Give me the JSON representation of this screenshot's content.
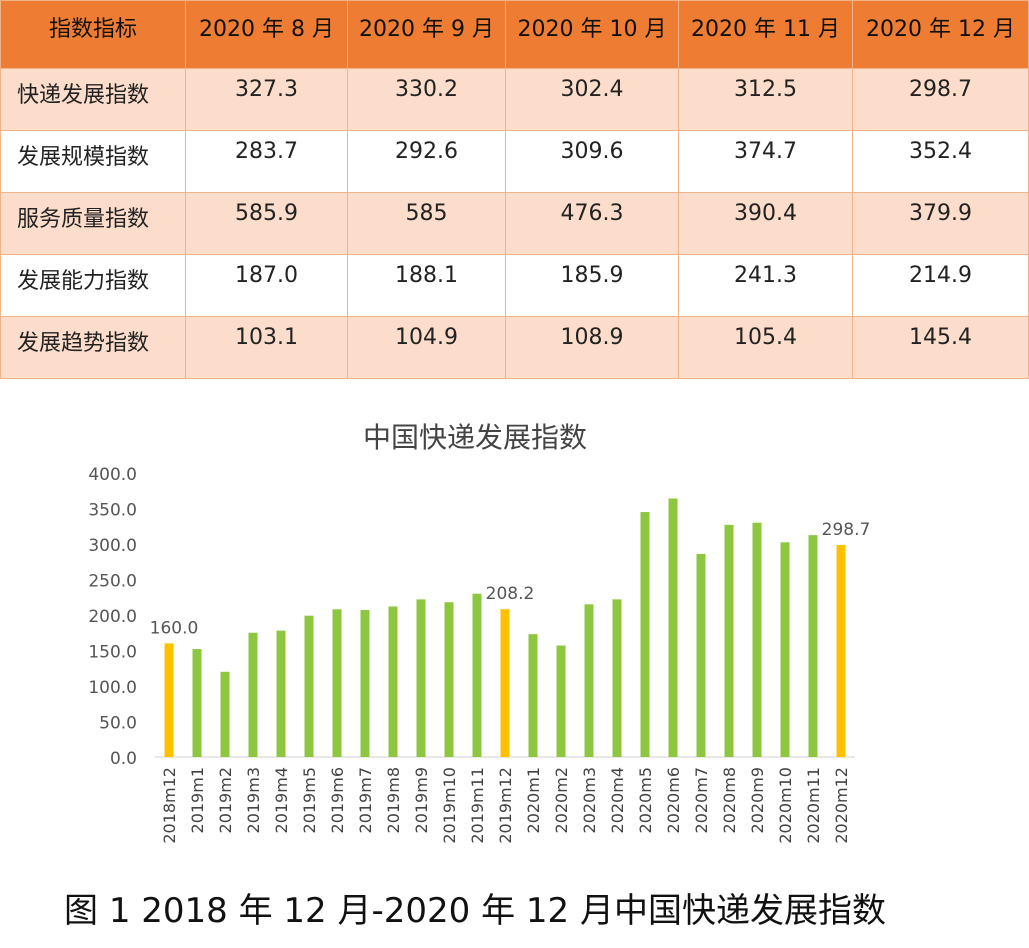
{
  "table": {
    "header": [
      "指数指标",
      "2020 年 8 月",
      "2020 年 9 月",
      "2020 年 10 月",
      "2020 年 11 月",
      "2020 年 12 月"
    ],
    "rows": [
      {
        "name": "快递发展指数",
        "values": [
          "327.3",
          "330.2",
          "302.4",
          "312.5",
          "298.7"
        ]
      },
      {
        "name": "发展规模指数",
        "values": [
          "283.7",
          "292.6",
          "309.6",
          "374.7",
          "352.4"
        ]
      },
      {
        "name": "服务质量指数",
        "values": [
          "585.9",
          "585",
          "476.3",
          "390.4",
          "379.9"
        ]
      },
      {
        "name": "发展能力指数",
        "values": [
          "187.0",
          "188.1",
          "185.9",
          "241.3",
          "214.9"
        ]
      },
      {
        "name": "发展趋势指数",
        "values": [
          "103.1",
          "104.9",
          "108.9",
          "105.4",
          "145.4"
        ]
      }
    ]
  },
  "chart_data": {
    "type": "bar",
    "title": "中国快递发展指数",
    "categories": [
      "2018m12",
      "2019m1",
      "2019m2",
      "2019m3",
      "2019m4",
      "2019m5",
      "2019m6",
      "2019m7",
      "2019m8",
      "2019m9",
      "2019m10",
      "2019m11",
      "2019m12",
      "2020m1",
      "2020m2",
      "2020m3",
      "2020m4",
      "2020m5",
      "2020m6",
      "2020m7",
      "2020m8",
      "2020m9",
      "2020m10",
      "2020m11",
      "2020m12"
    ],
    "values": [
      160.0,
      152,
      120,
      175,
      178,
      199,
      208,
      207,
      212,
      222,
      218,
      230,
      208.2,
      173,
      157,
      215,
      222,
      345,
      364,
      286,
      327,
      330,
      302.4,
      312.5,
      298.7
    ],
    "highlight_indices": [
      0,
      12,
      24
    ],
    "data_labels": {
      "0": "160.0",
      "12": "208.2",
      "24": "298.7"
    },
    "colors": {
      "normal": "#8dc63f",
      "highlight": "#ffc000"
    },
    "yticks": [
      "0.0",
      "50.0",
      "100.0",
      "150.0",
      "200.0",
      "250.0",
      "300.0",
      "350.0",
      "400.0"
    ],
    "ylim": [
      0,
      400
    ],
    "xlabel": "",
    "ylabel": "",
    "grid": false,
    "legend": "none"
  },
  "caption": "图 1 2018 年 12 月-2020 年 12 月中国快递发展指数"
}
